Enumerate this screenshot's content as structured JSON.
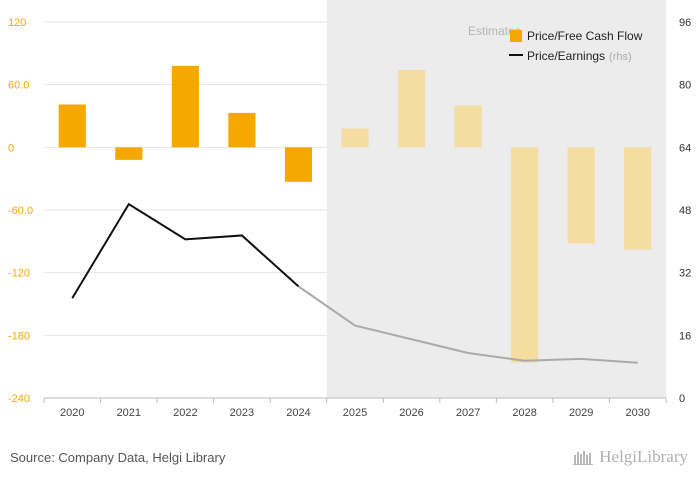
{
  "chart_data": {
    "type": "bar",
    "categories": [
      "2020",
      "2021",
      "2022",
      "2023",
      "2024",
      "2025",
      "2026",
      "2027",
      "2028",
      "2029",
      "2030"
    ],
    "estimate_start_index": 5,
    "estimate_label": "Estimates",
    "series": [
      {
        "name": "Price/Free Cash Flow",
        "type": "bar",
        "axis": "left",
        "color": "#f5a800",
        "estimate_color": "#f5dca0",
        "values": [
          41,
          -12,
          78,
          33,
          -33,
          18,
          74,
          40,
          -206,
          -92,
          -98
        ]
      },
      {
        "name": "Price/Earnings",
        "rhs_note": "(rhs)",
        "type": "line",
        "axis": "right",
        "color": "#111111",
        "estimate_color": "#aaaaaa",
        "values": [
          25.5,
          49.5,
          40.5,
          41.5,
          28.5,
          18.5,
          15,
          11.5,
          9.5,
          10,
          9
        ]
      }
    ],
    "left_axis": {
      "min": -240,
      "max": 120,
      "ticks": [
        "120",
        "60.0",
        "0",
        "-60.0",
        "-120",
        "-180",
        "-240"
      ]
    },
    "right_axis": {
      "min": 0,
      "max": 96,
      "ticks": [
        "96",
        "80",
        "64",
        "48",
        "32",
        "16",
        "0"
      ]
    },
    "legend_position": "top-right",
    "grid": true
  },
  "footer": {
    "source": "Source: Company Data, Helgi Library",
    "logo_text": "HelgiLibrary"
  },
  "colors": {
    "left_axis_text": "#f2a900",
    "estimate_shading": "#ececec"
  }
}
